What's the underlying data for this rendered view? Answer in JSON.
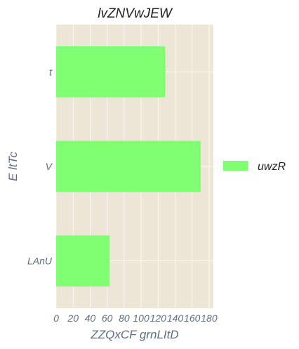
{
  "chart_data": {
    "type": "bar",
    "orientation": "horizontal",
    "title": "lvZNVwJEW",
    "xlabel": "ZZQxCF grnLItD",
    "ylabel": "E  ltTc",
    "categories": [
      "t",
      "V",
      "LAnU"
    ],
    "series": [
      {
        "name": "uwzR",
        "values": [
          128,
          170,
          63
        ],
        "color": "#80ff72"
      }
    ],
    "xlim": [
      0,
      185
    ],
    "xticks": [
      0,
      20,
      40,
      60,
      80,
      100,
      120,
      140,
      160,
      180
    ],
    "grid": true,
    "legend": "right"
  },
  "colors": {
    "plot_background": "#ede6d6",
    "grid": "#ffffff",
    "tick_text": "#5d6f82",
    "title_text": "#222222"
  }
}
